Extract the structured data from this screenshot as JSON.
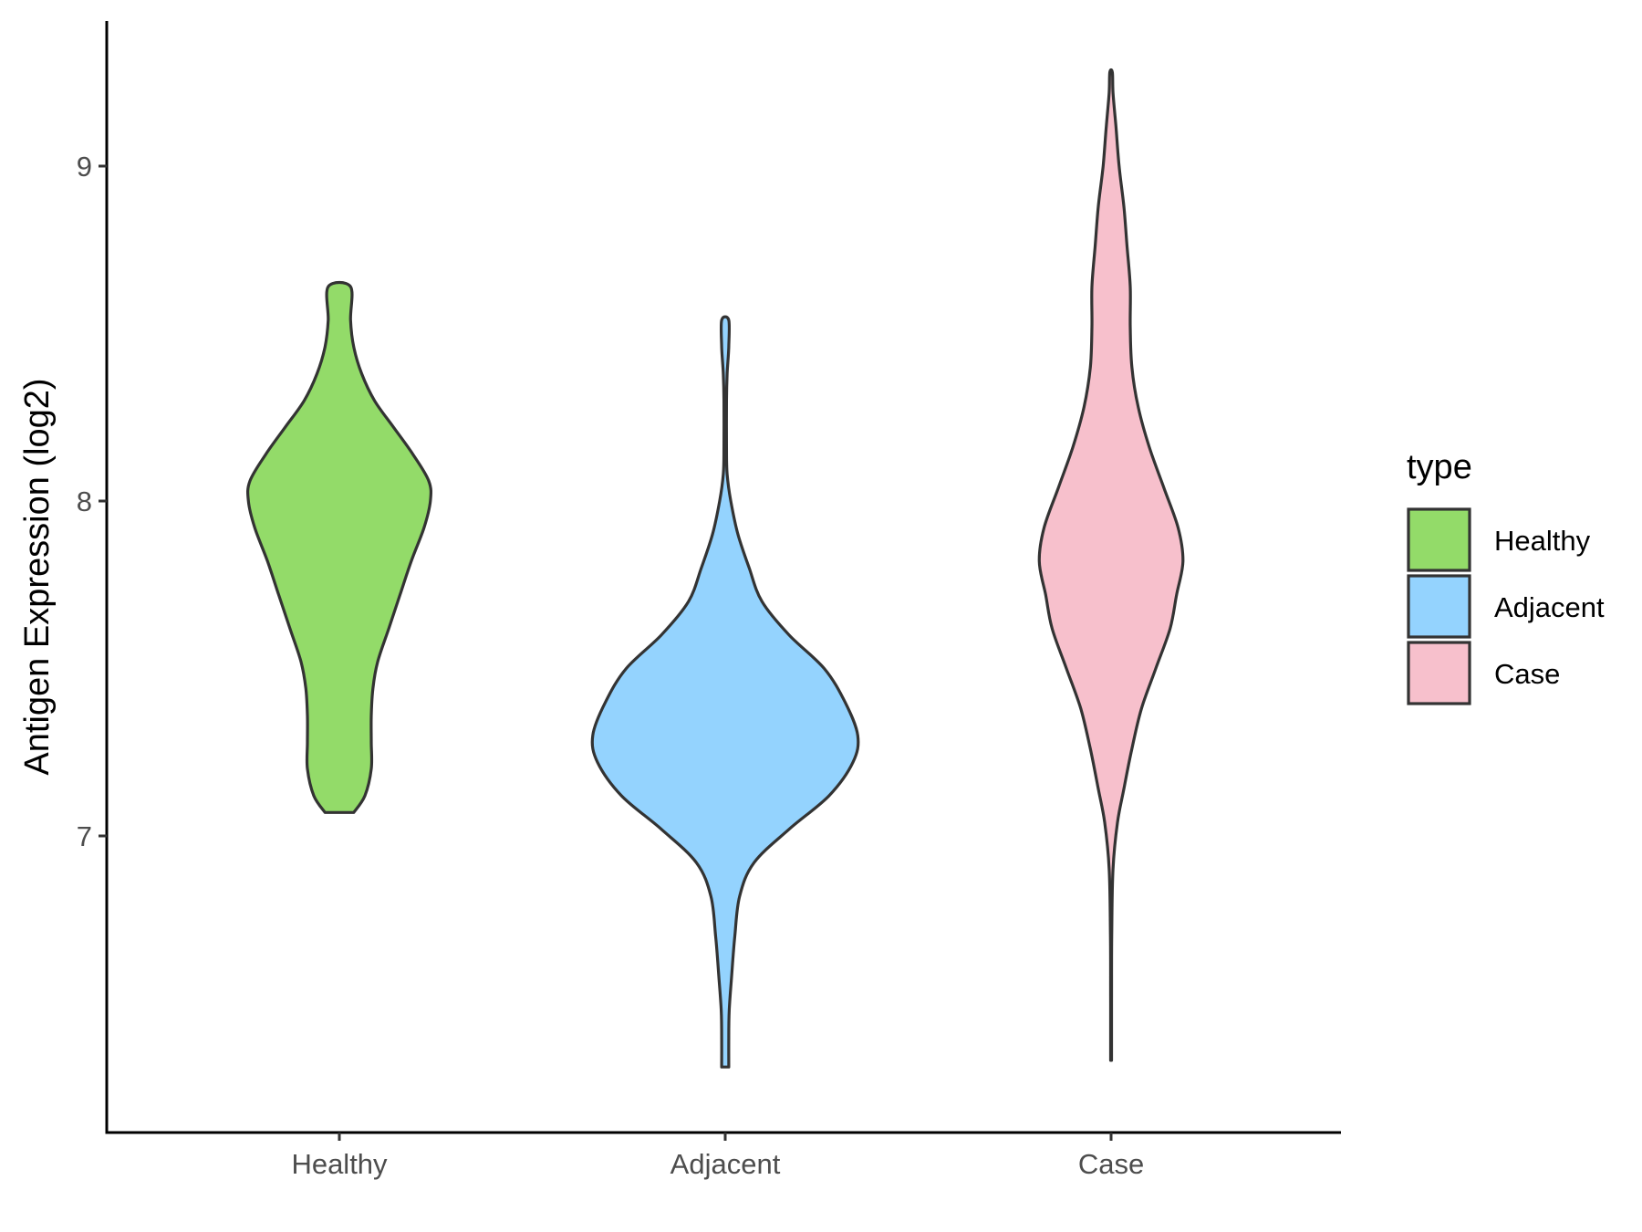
{
  "chart_data": {
    "type": "violin",
    "xlabel": "",
    "ylabel": "Antigen Expression (log2)",
    "categories": [
      "Healthy",
      "Adjacent",
      "Case"
    ],
    "ylim": [
      6.2,
      9.42
    ],
    "yticks": [
      7,
      8,
      9
    ],
    "grid": false,
    "legend": {
      "title": "type",
      "position": "right",
      "entries": [
        "Healthy",
        "Adjacent",
        "Case"
      ]
    },
    "series": [
      {
        "name": "Healthy",
        "color": "#93DB69",
        "range": [
          7.07,
          8.64
        ],
        "profile": [
          [
            7.07,
            0.09
          ],
          [
            7.12,
            0.16
          ],
          [
            7.2,
            0.2
          ],
          [
            7.28,
            0.2
          ],
          [
            7.36,
            0.2
          ],
          [
            7.44,
            0.21
          ],
          [
            7.52,
            0.24
          ],
          [
            7.62,
            0.31
          ],
          [
            7.72,
            0.38
          ],
          [
            7.82,
            0.45
          ],
          [
            7.92,
            0.53
          ],
          [
            8.0,
            0.57
          ],
          [
            8.06,
            0.56
          ],
          [
            8.14,
            0.46
          ],
          [
            8.22,
            0.34
          ],
          [
            8.3,
            0.22
          ],
          [
            8.38,
            0.14
          ],
          [
            8.46,
            0.09
          ],
          [
            8.54,
            0.07
          ],
          [
            8.64,
            0.07
          ]
        ]
      },
      {
        "name": "Adjacent",
        "color": "#94D3FE",
        "range": [
          6.31,
          8.54
        ],
        "profile": [
          [
            6.31,
            0.022
          ],
          [
            6.4,
            0.022
          ],
          [
            6.48,
            0.025
          ],
          [
            6.58,
            0.04
          ],
          [
            6.7,
            0.06
          ],
          [
            6.82,
            0.09
          ],
          [
            6.92,
            0.18
          ],
          [
            7.02,
            0.4
          ],
          [
            7.12,
            0.65
          ],
          [
            7.22,
            0.8
          ],
          [
            7.3,
            0.83
          ],
          [
            7.4,
            0.75
          ],
          [
            7.5,
            0.62
          ],
          [
            7.6,
            0.4
          ],
          [
            7.7,
            0.23
          ],
          [
            7.8,
            0.15
          ],
          [
            7.9,
            0.08
          ],
          [
            8.0,
            0.035
          ],
          [
            8.08,
            0.012
          ],
          [
            8.16,
            0.008
          ],
          [
            8.3,
            0.008
          ],
          [
            8.38,
            0.012
          ],
          [
            8.46,
            0.022
          ],
          [
            8.54,
            0.022
          ]
        ]
      },
      {
        "name": "Case",
        "color": "#F7C0CC",
        "range": [
          6.33,
          9.28
        ],
        "profile": [
          [
            6.33,
            0.003
          ],
          [
            6.5,
            0.003
          ],
          [
            6.7,
            0.004
          ],
          [
            6.9,
            0.012
          ],
          [
            7.04,
            0.04
          ],
          [
            7.14,
            0.08
          ],
          [
            7.26,
            0.13
          ],
          [
            7.38,
            0.19
          ],
          [
            7.5,
            0.28
          ],
          [
            7.62,
            0.37
          ],
          [
            7.72,
            0.41
          ],
          [
            7.82,
            0.45
          ],
          [
            7.92,
            0.42
          ],
          [
            8.04,
            0.33
          ],
          [
            8.16,
            0.24
          ],
          [
            8.28,
            0.17
          ],
          [
            8.4,
            0.13
          ],
          [
            8.52,
            0.12
          ],
          [
            8.64,
            0.12
          ],
          [
            8.76,
            0.1
          ],
          [
            8.88,
            0.08
          ],
          [
            9.0,
            0.05
          ],
          [
            9.12,
            0.03
          ],
          [
            9.22,
            0.012
          ],
          [
            9.28,
            0.008
          ]
        ]
      }
    ]
  }
}
